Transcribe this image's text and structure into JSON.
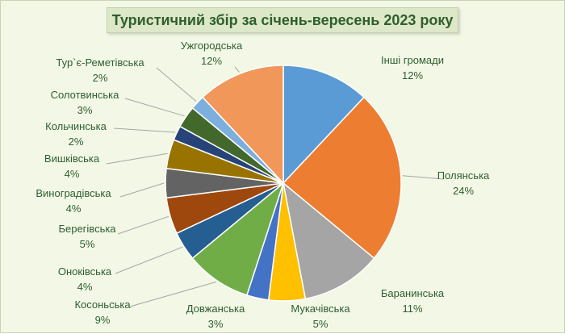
{
  "chart_data": {
    "type": "pie",
    "title": "Туристичний збір за січень-вересень 2023 року",
    "slices": [
      {
        "name": "Інші громади",
        "percent_label": "12%",
        "value": 12,
        "color": "#5b9bd5"
      },
      {
        "name": "Полянська",
        "percent_label": "24%",
        "value": 24,
        "color": "#ed7d31"
      },
      {
        "name": "Баранинська",
        "percent_label": "11%",
        "value": 11,
        "color": "#a5a5a5"
      },
      {
        "name": "Мукачівська",
        "percent_label": "5%",
        "value": 5,
        "color": "#ffc000"
      },
      {
        "name": "Довжанська",
        "percent_label": "3%",
        "value": 3,
        "color": "#4472c4"
      },
      {
        "name": "Косоньська",
        "percent_label": "9%",
        "value": 9,
        "color": "#70ad47"
      },
      {
        "name": "Оноківська",
        "percent_label": "4%",
        "value": 4,
        "color": "#255e91"
      },
      {
        "name": "Берегівська",
        "percent_label": "5%",
        "value": 5,
        "color": "#9e480e"
      },
      {
        "name": "Виноградівська",
        "percent_label": "4%",
        "value": 4,
        "color": "#636363"
      },
      {
        "name": "Вишківська",
        "percent_label": "4%",
        "value": 4,
        "color": "#997300"
      },
      {
        "name": "Кольчинська",
        "percent_label": "2%",
        "value": 2,
        "color": "#264478"
      },
      {
        "name": "Солотвинська",
        "percent_label": "3%",
        "value": 3,
        "color": "#43682b"
      },
      {
        "name": "Тур`є-Реметівська",
        "percent_label": "2%",
        "value": 2,
        "color": "#7cafdd"
      },
      {
        "name": "Ужгородська",
        "percent_label": "12%",
        "value": 12,
        "color": "#f1975a"
      }
    ]
  }
}
